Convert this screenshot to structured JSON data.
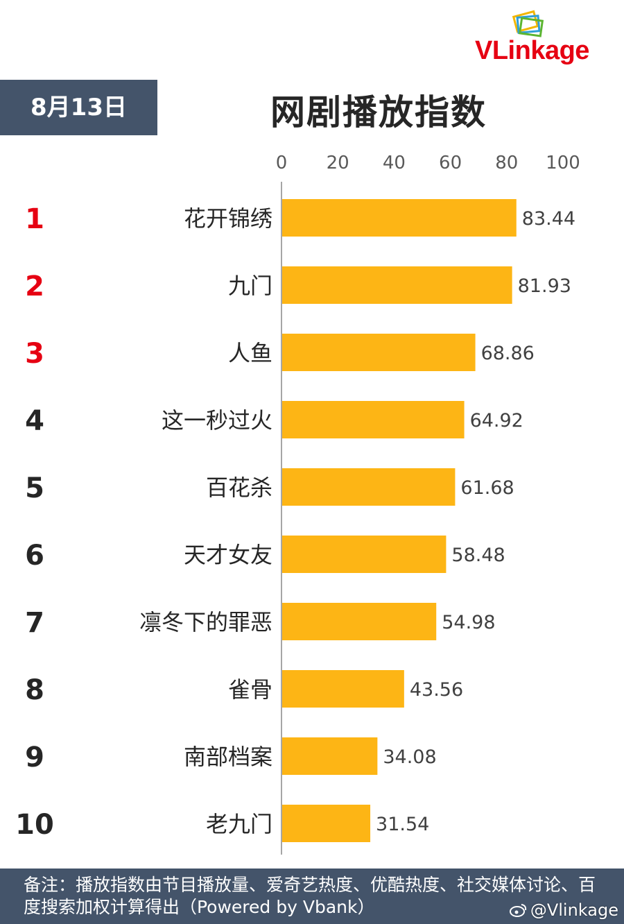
{
  "logo": {
    "text_vl": "VLin",
    "text_rest": "kage"
  },
  "date": "8月13日",
  "title": "网剧播放指数",
  "footer": {
    "note": "备注：播放指数由节目播放量、爱奇艺热度、优酷热度、社交媒体讨论、百度搜索加权计算得出（Powered by Vbank）",
    "watermark": "@Vlinkage"
  },
  "colors": {
    "bar": "#fdb515",
    "rank_top": "#e60012",
    "rank_other": "#262626",
    "header_bg": "#44546a"
  },
  "chart_data": {
    "type": "bar",
    "orientation": "horizontal",
    "title": "网剧播放指数",
    "xlim": [
      0,
      100
    ],
    "x_ticks": [
      "0",
      "20",
      "40",
      "60",
      "80",
      "100"
    ],
    "ranks": [
      "1",
      "2",
      "3",
      "4",
      "5",
      "6",
      "7",
      "8",
      "9",
      "10"
    ],
    "categories": [
      "花开锦绣",
      "九门",
      "人鱼",
      "这一秒过火",
      "百花杀",
      "天才女友",
      "凛冬下的罪恶",
      "雀骨",
      "南部档案",
      "老九门"
    ],
    "values": [
      83.44,
      81.93,
      68.86,
      64.92,
      61.68,
      58.48,
      54.98,
      43.56,
      34.08,
      31.54
    ],
    "value_labels": [
      "83.44",
      "81.93",
      "68.86",
      "64.92",
      "61.68",
      "58.48",
      "54.98",
      "43.56",
      "34.08",
      "31.54"
    ],
    "grid": false
  }
}
